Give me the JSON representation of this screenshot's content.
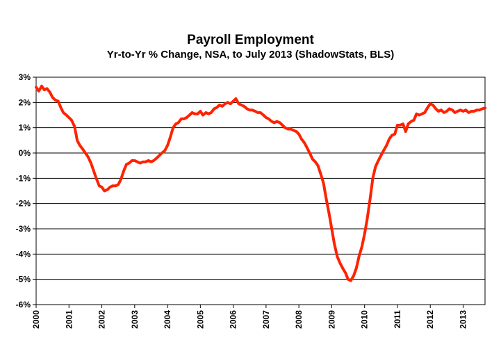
{
  "chart_data": {
    "type": "line",
    "title": "Payroll Employment",
    "subtitle": "Yr-to-Yr % Change, NSA, to July 2013 (ShadowStats, BLS)",
    "xlabel": "",
    "ylabel": "",
    "ylim": [
      -6,
      3
    ],
    "xlim": [
      2000.0,
      2013.667
    ],
    "grid": true,
    "legend": "none",
    "y_ticks": [
      "3%",
      "2%",
      "1%",
      "0%",
      "-1%",
      "-2%",
      "-3%",
      "-4%",
      "-5%",
      "-6%"
    ],
    "y_tick_values": [
      3,
      2,
      1,
      0,
      -1,
      -2,
      -3,
      -4,
      -5,
      -6
    ],
    "x_ticks": [
      "2000",
      "2001",
      "2002",
      "2003",
      "2004",
      "2005",
      "2006",
      "2007",
      "2008",
      "2009",
      "2010",
      "2011",
      "2012",
      "2013"
    ],
    "x_tick_values": [
      2000,
      2001,
      2002,
      2003,
      2004,
      2005,
      2006,
      2007,
      2008,
      2009,
      2010,
      2011,
      2012,
      2013
    ],
    "colors": {
      "series": "#ff2200",
      "grid": "#000000",
      "axis": "#000000"
    },
    "series": [
      {
        "points": [
          [
            2000.0,
            2.6
          ],
          [
            2000.08,
            2.45
          ],
          [
            2000.17,
            2.65
          ],
          [
            2000.25,
            2.5
          ],
          [
            2000.33,
            2.55
          ],
          [
            2000.42,
            2.4
          ],
          [
            2000.5,
            2.2
          ],
          [
            2000.58,
            2.1
          ],
          [
            2000.67,
            2.05
          ],
          [
            2000.75,
            1.8
          ],
          [
            2000.83,
            1.6
          ],
          [
            2000.92,
            1.5
          ],
          [
            2001.0,
            1.4
          ],
          [
            2001.08,
            1.3
          ],
          [
            2001.17,
            1.05
          ],
          [
            2001.25,
            0.5
          ],
          [
            2001.33,
            0.3
          ],
          [
            2001.42,
            0.15
          ],
          [
            2001.5,
            0.0
          ],
          [
            2001.58,
            -0.15
          ],
          [
            2001.67,
            -0.4
          ],
          [
            2001.75,
            -0.7
          ],
          [
            2001.83,
            -1.0
          ],
          [
            2001.92,
            -1.3
          ],
          [
            2002.0,
            -1.35
          ],
          [
            2002.08,
            -1.5
          ],
          [
            2002.17,
            -1.45
          ],
          [
            2002.25,
            -1.35
          ],
          [
            2002.33,
            -1.3
          ],
          [
            2002.42,
            -1.3
          ],
          [
            2002.5,
            -1.25
          ],
          [
            2002.58,
            -1.05
          ],
          [
            2002.67,
            -0.7
          ],
          [
            2002.75,
            -0.45
          ],
          [
            2002.83,
            -0.4
          ],
          [
            2002.92,
            -0.3
          ],
          [
            2003.0,
            -0.3
          ],
          [
            2003.08,
            -0.35
          ],
          [
            2003.17,
            -0.4
          ],
          [
            2003.25,
            -0.35
          ],
          [
            2003.33,
            -0.35
          ],
          [
            2003.42,
            -0.3
          ],
          [
            2003.5,
            -0.35
          ],
          [
            2003.58,
            -0.3
          ],
          [
            2003.67,
            -0.2
          ],
          [
            2003.75,
            -0.1
          ],
          [
            2003.83,
            0.0
          ],
          [
            2003.92,
            0.1
          ],
          [
            2004.0,
            0.3
          ],
          [
            2004.08,
            0.6
          ],
          [
            2004.17,
            1.0
          ],
          [
            2004.25,
            1.15
          ],
          [
            2004.33,
            1.2
          ],
          [
            2004.42,
            1.35
          ],
          [
            2004.5,
            1.35
          ],
          [
            2004.58,
            1.4
          ],
          [
            2004.67,
            1.5
          ],
          [
            2004.75,
            1.6
          ],
          [
            2004.83,
            1.55
          ],
          [
            2004.92,
            1.55
          ],
          [
            2005.0,
            1.65
          ],
          [
            2005.08,
            1.5
          ],
          [
            2005.17,
            1.6
          ],
          [
            2005.25,
            1.55
          ],
          [
            2005.33,
            1.6
          ],
          [
            2005.42,
            1.75
          ],
          [
            2005.5,
            1.8
          ],
          [
            2005.58,
            1.9
          ],
          [
            2005.67,
            1.85
          ],
          [
            2005.75,
            1.95
          ],
          [
            2005.83,
            2.0
          ],
          [
            2005.92,
            1.95
          ],
          [
            2006.0,
            2.05
          ],
          [
            2006.08,
            2.15
          ],
          [
            2006.17,
            1.95
          ],
          [
            2006.25,
            1.9
          ],
          [
            2006.33,
            1.85
          ],
          [
            2006.42,
            1.75
          ],
          [
            2006.5,
            1.7
          ],
          [
            2006.58,
            1.7
          ],
          [
            2006.67,
            1.65
          ],
          [
            2006.75,
            1.6
          ],
          [
            2006.83,
            1.6
          ],
          [
            2006.92,
            1.5
          ],
          [
            2007.0,
            1.4
          ],
          [
            2007.08,
            1.35
          ],
          [
            2007.17,
            1.25
          ],
          [
            2007.25,
            1.2
          ],
          [
            2007.33,
            1.25
          ],
          [
            2007.42,
            1.2
          ],
          [
            2007.5,
            1.1
          ],
          [
            2007.58,
            1.0
          ],
          [
            2007.67,
            0.95
          ],
          [
            2007.75,
            0.95
          ],
          [
            2007.83,
            0.9
          ],
          [
            2007.92,
            0.85
          ],
          [
            2008.0,
            0.75
          ],
          [
            2008.08,
            0.55
          ],
          [
            2008.17,
            0.4
          ],
          [
            2008.25,
            0.2
          ],
          [
            2008.33,
            0.0
          ],
          [
            2008.42,
            -0.25
          ],
          [
            2008.5,
            -0.35
          ],
          [
            2008.58,
            -0.5
          ],
          [
            2008.67,
            -0.85
          ],
          [
            2008.75,
            -1.2
          ],
          [
            2008.83,
            -1.8
          ],
          [
            2008.92,
            -2.4
          ],
          [
            2009.0,
            -3.0
          ],
          [
            2009.08,
            -3.6
          ],
          [
            2009.17,
            -4.1
          ],
          [
            2009.25,
            -4.35
          ],
          [
            2009.33,
            -4.55
          ],
          [
            2009.42,
            -4.75
          ],
          [
            2009.5,
            -5.0
          ],
          [
            2009.58,
            -5.05
          ],
          [
            2009.67,
            -4.85
          ],
          [
            2009.75,
            -4.55
          ],
          [
            2009.83,
            -4.1
          ],
          [
            2009.92,
            -3.7
          ],
          [
            2010.0,
            -3.2
          ],
          [
            2010.08,
            -2.6
          ],
          [
            2010.17,
            -1.8
          ],
          [
            2010.25,
            -1.0
          ],
          [
            2010.33,
            -0.55
          ],
          [
            2010.42,
            -0.3
          ],
          [
            2010.5,
            -0.1
          ],
          [
            2010.58,
            0.1
          ],
          [
            2010.67,
            0.3
          ],
          [
            2010.75,
            0.55
          ],
          [
            2010.83,
            0.7
          ],
          [
            2010.92,
            0.75
          ],
          [
            2011.0,
            1.1
          ],
          [
            2011.08,
            1.1
          ],
          [
            2011.17,
            1.15
          ],
          [
            2011.25,
            0.85
          ],
          [
            2011.33,
            1.15
          ],
          [
            2011.42,
            1.25
          ],
          [
            2011.5,
            1.3
          ],
          [
            2011.58,
            1.55
          ],
          [
            2011.67,
            1.5
          ],
          [
            2011.75,
            1.55
          ],
          [
            2011.83,
            1.6
          ],
          [
            2011.92,
            1.8
          ],
          [
            2012.0,
            1.95
          ],
          [
            2012.08,
            1.9
          ],
          [
            2012.17,
            1.75
          ],
          [
            2012.25,
            1.65
          ],
          [
            2012.33,
            1.7
          ],
          [
            2012.42,
            1.6
          ],
          [
            2012.5,
            1.65
          ],
          [
            2012.58,
            1.75
          ],
          [
            2012.67,
            1.7
          ],
          [
            2012.75,
            1.6
          ],
          [
            2012.83,
            1.65
          ],
          [
            2012.92,
            1.7
          ],
          [
            2013.0,
            1.65
          ],
          [
            2013.08,
            1.7
          ],
          [
            2013.17,
            1.6
          ],
          [
            2013.25,
            1.65
          ],
          [
            2013.33,
            1.65
          ],
          [
            2013.42,
            1.7
          ],
          [
            2013.5,
            1.7
          ],
          [
            2013.58,
            1.75
          ],
          [
            2013.67,
            1.78
          ]
        ]
      }
    ]
  }
}
